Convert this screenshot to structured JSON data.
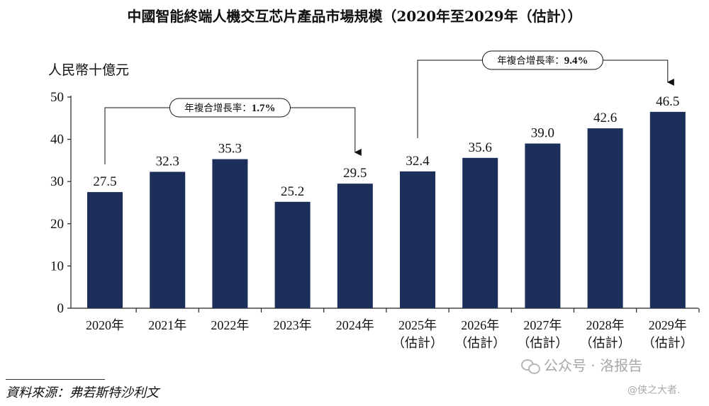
{
  "chart_data": {
    "type": "bar",
    "title": "中國智能終端人機交互芯片產品市場規模（2020年至2029年（估計））",
    "ylabel": "人民幣十億元",
    "xlabel": "",
    "ylim": [
      0,
      50
    ],
    "yticks": [
      0,
      10,
      20,
      30,
      40,
      50
    ],
    "grid": false,
    "categories": [
      {
        "year": "2020年",
        "note": ""
      },
      {
        "year": "2021年",
        "note": ""
      },
      {
        "year": "2022年",
        "note": ""
      },
      {
        "year": "2023年",
        "note": ""
      },
      {
        "year": "2024年",
        "note": ""
      },
      {
        "year": "2025年",
        "note": "（估計）"
      },
      {
        "year": "2026年",
        "note": "（估計）"
      },
      {
        "year": "2027年",
        "note": "（估計）"
      },
      {
        "year": "2028年",
        "note": "（估計）"
      },
      {
        "year": "2029年",
        "note": "（估計）"
      }
    ],
    "values": [
      27.5,
      32.3,
      35.3,
      25.2,
      29.5,
      32.4,
      35.6,
      39.0,
      42.6,
      46.5
    ],
    "value_labels": [
      "27.5",
      "32.3",
      "35.3",
      "25.2",
      "29.5",
      "32.4",
      "35.6",
      "39.0",
      "42.6",
      "46.5"
    ],
    "bar_color": "#1c2f5a",
    "annotations": [
      {
        "label_prefix": "年複合增長率：",
        "value": "1.7%",
        "from_index": 0,
        "to_index": 4
      },
      {
        "label_prefix": "年複合增長率：",
        "value": "9.4%",
        "from_index": 5,
        "to_index": 9
      }
    ]
  },
  "source": "資料來源：弗若斯特沙利文",
  "watermark": {
    "main": "公众号 · 洛报告",
    "sub": "@侠之大者."
  }
}
